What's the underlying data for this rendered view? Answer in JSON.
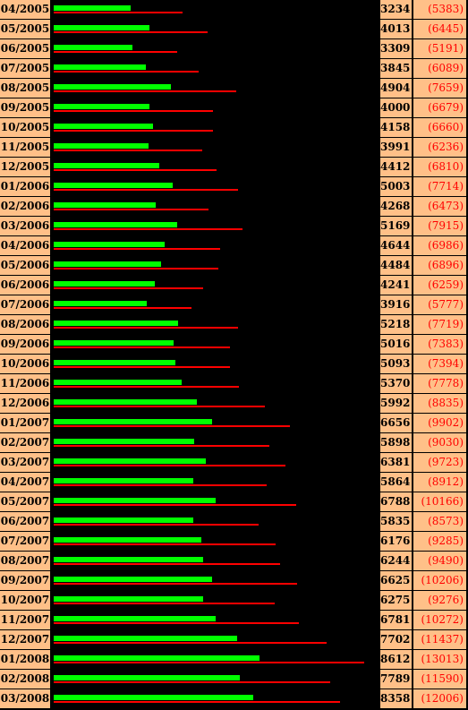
{
  "chart_data": {
    "type": "bar",
    "categories": [
      "04/2005",
      "05/2005",
      "06/2005",
      "07/2005",
      "08/2005",
      "09/2005",
      "10/2005",
      "11/2005",
      "12/2005",
      "01/2006",
      "02/2006",
      "03/2006",
      "04/2006",
      "05/2006",
      "06/2006",
      "07/2006",
      "08/2006",
      "09/2006",
      "10/2006",
      "11/2006",
      "12/2006",
      "01/2007",
      "02/2007",
      "03/2007",
      "04/2007",
      "05/2007",
      "06/2007",
      "07/2007",
      "08/2007",
      "09/2007",
      "10/2007",
      "11/2007",
      "12/2007",
      "01/2008",
      "02/2008",
      "03/2008"
    ],
    "series": [
      {
        "values": [
          3234,
          4013,
          3309,
          3845,
          4904,
          4000,
          4158,
          3991,
          4412,
          5003,
          4268,
          5169,
          4644,
          4484,
          4241,
          3916,
          5218,
          5016,
          5093,
          5370,
          5992,
          6656,
          5898,
          6381,
          5864,
          6788,
          5835,
          6176,
          6244,
          6625,
          6275,
          6781,
          7702,
          8612,
          7789,
          8358
        ],
        "color": "#00ff00"
      },
      {
        "values": [
          5383,
          6445,
          5191,
          6089,
          7659,
          6679,
          6660,
          6236,
          6810,
          7714,
          6473,
          7915,
          6986,
          6896,
          6259,
          5777,
          7719,
          7383,
          7394,
          7778,
          8835,
          9902,
          9030,
          9723,
          8912,
          10166,
          8573,
          9285,
          9490,
          10206,
          9276,
          10272,
          11437,
          13013,
          11590,
          12006
        ],
        "color": "#ff0000",
        "label_format": "parentheses"
      }
    ],
    "xlim": [
      0,
      13500
    ],
    "orientation": "horizontal",
    "grid": false,
    "legend": "none"
  }
}
